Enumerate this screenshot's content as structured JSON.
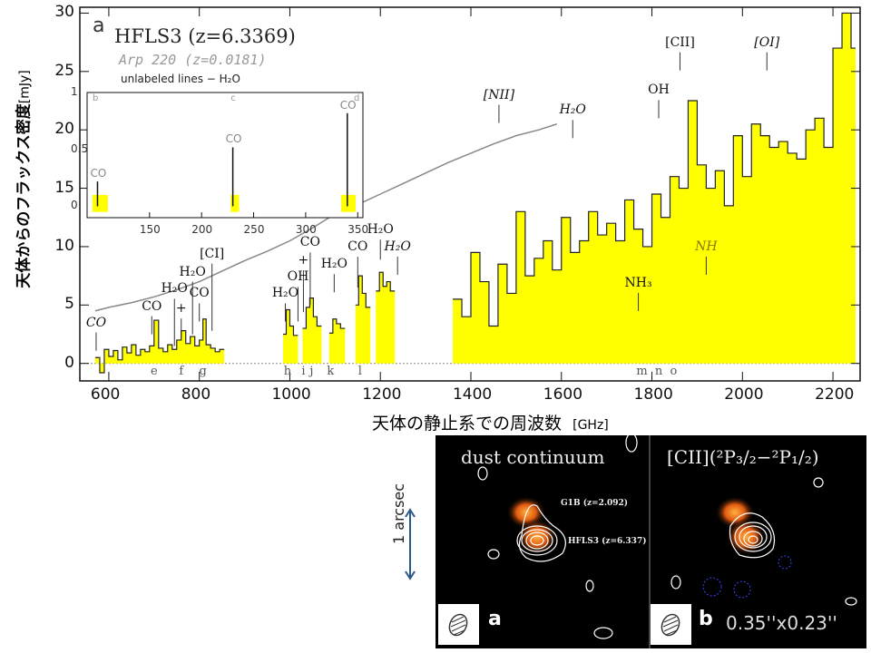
{
  "chart_data": {
    "type": "line",
    "title": "HFLS3 (z=6.3369)",
    "comparison_label": "Arp 220 (z=0.0181)",
    "note": "unlabeled lines − H₂O",
    "panel_label": "a",
    "xlabel": "天体の静止系での周波数",
    "xlabel_unit": "[GHz]",
    "ylabel": "天体からのフラックス密度",
    "ylabel_unit": "[mJy]",
    "xlim": [
      536,
      2260
    ],
    "ylim": [
      -1.5,
      30.5
    ],
    "xticks": [
      600,
      800,
      1000,
      1200,
      1400,
      1600,
      1800,
      2000,
      2200
    ],
    "yticks": [
      0,
      5,
      10,
      15,
      20,
      25,
      30
    ],
    "colors": {
      "hfls3_fill": "#ffff00",
      "hfls3_line": "#222222",
      "arp220": "#888888"
    },
    "series": [
      {
        "name": "HFLS3",
        "segments": [
          {
            "x": [
              570,
              580,
              590,
              600,
              610,
              620,
              630,
              640,
              650,
              660,
              670,
              680,
              690,
              700,
              710,
              720,
              730,
              740,
              750,
              760,
              770,
              780,
              790,
              800,
              808,
              815,
              825,
              835,
              845
            ],
            "y": [
              0.5,
              -0.8,
              1.2,
              0.6,
              1.1,
              0.3,
              1.4,
              0.9,
              1.6,
              0.7,
              1.2,
              1.0,
              1.5,
              3.7,
              1.3,
              1.0,
              1.6,
              1.2,
              2.0,
              2.8,
              1.7,
              2.3,
              1.5,
              2.0,
              3.8,
              1.6,
              1.3,
              1.0,
              1.2
            ]
          },
          {
            "x": [
              985,
              992,
              1000,
              1008
            ],
            "y": [
              2.5,
              4.6,
              3.2,
              2.4
            ]
          },
          {
            "x": [
              1028,
              1036,
              1044,
              1052,
              1060
            ],
            "y": [
              3.0,
              4.8,
              5.6,
              4.0,
              3.2
            ]
          },
          {
            "x": [
              1087,
              1095,
              1103,
              1112
            ],
            "y": [
              2.6,
              3.8,
              3.4,
              3.0
            ]
          },
          {
            "x": [
              1145,
              1152,
              1160,
              1168
            ],
            "y": [
              5.0,
              7.5,
              6.0,
              4.8
            ]
          },
          {
            "x": [
              1190,
              1198,
              1206,
              1214,
              1222
            ],
            "y": [
              6.2,
              7.8,
              6.6,
              7.0,
              6.2
            ]
          },
          {
            "x": [
              1360,
              1380,
              1400,
              1420,
              1440,
              1460,
              1480,
              1500,
              1520,
              1540,
              1560,
              1580,
              1600,
              1620,
              1640,
              1660,
              1680,
              1700,
              1720,
              1740,
              1760,
              1780,
              1800,
              1820,
              1840,
              1860,
              1880,
              1900,
              1920,
              1940,
              1960,
              1980,
              2000,
              2020,
              2040,
              2060,
              2080,
              2100,
              2120,
              2140,
              2160,
              2180,
              2200,
              2220,
              2240
            ],
            "y": [
              5.5,
              4.0,
              9.5,
              7.0,
              3.2,
              8.5,
              6.0,
              13.0,
              7.5,
              9.0,
              10.5,
              8.0,
              12.5,
              9.5,
              10.5,
              13.0,
              11.0,
              12.0,
              10.5,
              14.0,
              11.5,
              10.0,
              14.5,
              12.5,
              16.0,
              15.0,
              22.5,
              17.0,
              15.0,
              16.5,
              13.5,
              19.5,
              16.0,
              20.5,
              19.5,
              18.5,
              19.0,
              18.0,
              17.5,
              20.0,
              21.0,
              18.5,
              27.0,
              30.0,
              27.0
            ]
          }
        ]
      },
      {
        "name": "Arp 220",
        "x": [
          570,
          600,
          650,
          700,
          750,
          800,
          850,
          900,
          950,
          1000,
          1050,
          1100,
          1150,
          1200,
          1250,
          1300,
          1350,
          1400,
          1450,
          1500,
          1550,
          1590
        ],
        "y": [
          4.5,
          4.8,
          5.2,
          5.7,
          6.3,
          7.0,
          7.9,
          8.8,
          9.6,
          10.5,
          11.6,
          12.8,
          13.6,
          14.5,
          15.4,
          16.3,
          17.2,
          18.0,
          18.8,
          19.5,
          20.0,
          20.5
        ]
      }
    ],
    "line_annotations": [
      {
        "text": "CO",
        "x": 572,
        "y": 2.8,
        "style": "it"
      },
      {
        "text": "CO",
        "x": 695,
        "y": 4.2
      },
      {
        "text": "H₂O",
        "x": 745,
        "y": 3.2
      },
      {
        "text": "+",
        "x": 760,
        "y": 4.0
      },
      {
        "text": "H₂O",
        "x": 785,
        "y": 4.2
      },
      {
        "text": "CO",
        "x": 800,
        "y": 5.3
      },
      {
        "text": "[CI]",
        "x": 828,
        "y": 4.5
      },
      {
        "text": "H₂O",
        "x": 990,
        "y": 5.3
      },
      {
        "text": "OH",
        "x": 1018,
        "y": 5.3
      },
      {
        "text": "+",
        "x": 1030,
        "y": 6.1
      },
      {
        "text": "CO",
        "x": 1045,
        "y": 6.7
      },
      {
        "text": "H₂O",
        "x": 1098,
        "y": 7.8
      },
      {
        "text": "CO",
        "x": 1150,
        "y": 8.2
      },
      {
        "text": "H₂O",
        "x": 1200,
        "y": 10.6
      },
      {
        "text": "H₂O",
        "x": 1238,
        "y": 9.3,
        "style": "it"
      },
      {
        "text": "[NII]",
        "x": 1462,
        "y": 22.3,
        "style": "it"
      },
      {
        "text": "H₂O",
        "x": 1625,
        "y": 21.0,
        "style": "it"
      },
      {
        "text": "OH",
        "x": 1815,
        "y": 22.7
      },
      {
        "text": "[CII]",
        "x": 1862,
        "y": 26.8
      },
      {
        "text": "[OI]",
        "x": 2054,
        "y": 26.8,
        "style": "it"
      },
      {
        "text": "NH₃",
        "x": 1770,
        "y": 6.2
      },
      {
        "text": "NH",
        "x": 1920,
        "y": 9.3,
        "style": "it olive"
      }
    ],
    "band_labels": [
      {
        "text": "e",
        "x": 700
      },
      {
        "text": "f",
        "x": 760
      },
      {
        "text": "g",
        "x": 808
      },
      {
        "text": "h",
        "x": 995
      },
      {
        "text": "i",
        "x": 1030
      },
      {
        "text": "j",
        "x": 1048
      },
      {
        "text": "k",
        "x": 1090
      },
      {
        "text": "l",
        "x": 1155
      },
      {
        "text": "m",
        "x": 1778
      },
      {
        "text": "n",
        "x": 1815
      },
      {
        "text": "o",
        "x": 1848
      }
    ],
    "inset": {
      "xlim": [
        90,
        355
      ],
      "ylim": [
        -0.1,
        1.0
      ],
      "xticks": [
        150,
        200,
        250,
        300,
        350
      ],
      "yticks": [
        0,
        0.5,
        1
      ],
      "ytick_labels": [
        "0",
        "0.5",
        "1"
      ],
      "corner_labels": [
        "b",
        "c",
        "d"
      ],
      "annotations": [
        {
          "text": "CO",
          "x": 100,
          "y": 0.25
        },
        {
          "text": "CO",
          "x": 230,
          "y": 0.55
        },
        {
          "text": "CO",
          "x": 340,
          "y": 0.85
        }
      ]
    }
  },
  "maps": {
    "arcsec_label": "1 arcsec",
    "panels": [
      {
        "title": "dust continuum",
        "letter": "a",
        "sources": [
          "G1B (z=2.092)",
          "HFLS3 (z=6.337)"
        ]
      },
      {
        "title": "[CII](²P₃/₂−²P₁/₂)",
        "letter": "b",
        "beam_size": "0.35''x0.23''"
      }
    ]
  }
}
